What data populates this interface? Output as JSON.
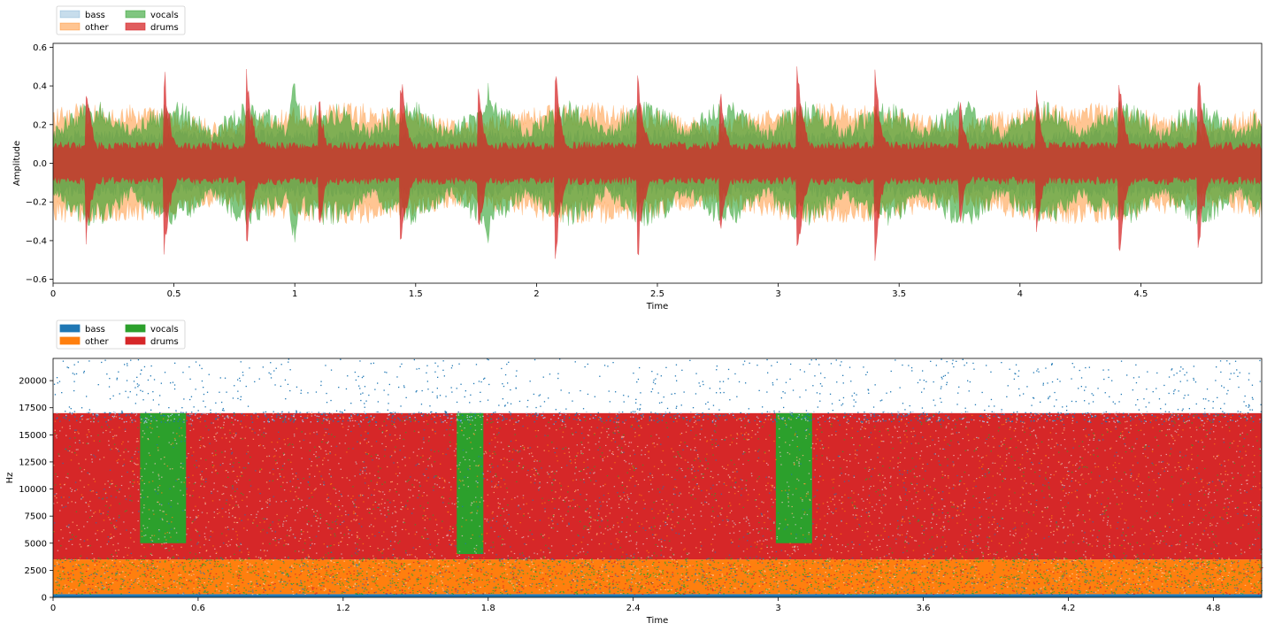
{
  "chart_data": [
    {
      "type": "area",
      "xlabel": "Time",
      "ylabel": "Amplitude",
      "xlim": [
        0,
        5.0
      ],
      "ylim": [
        -0.62,
        0.62
      ],
      "xticks": [
        0,
        0.5,
        1,
        1.5,
        2,
        2.5,
        3,
        3.5,
        4,
        4.5
      ],
      "xtick_labels": [
        "0",
        "0.5",
        "1",
        "1.5",
        "2",
        "2.5",
        "3",
        "3.5",
        "4",
        "4.5"
      ],
      "yticks": [
        -0.6,
        -0.4,
        -0.2,
        0.0,
        0.2,
        0.4,
        0.6
      ],
      "ytick_labels": [
        "−0.6",
        "−0.4",
        "−0.2",
        "0.0",
        "0.2",
        "0.4",
        "0.6"
      ],
      "grid": false,
      "legend": {
        "placement": "top-left outside",
        "columns": 2,
        "entries": [
          {
            "label": "bass",
            "color": "#1f77b4",
            "alpha": 0.25
          },
          {
            "label": "other",
            "color": "#ff7f0e",
            "alpha": 0.45
          },
          {
            "label": "vocals",
            "color": "#2ca02c",
            "alpha": 0.6
          },
          {
            "label": "drums",
            "color": "#d62728",
            "alpha": 0.75
          }
        ]
      },
      "series": [
        {
          "name": "bass",
          "color": "#1f77b4",
          "typical_amplitude": 0.14
        },
        {
          "name": "other",
          "color": "#ff7f0e",
          "typical_amplitude": 0.22
        },
        {
          "name": "vocals",
          "color": "#2ca02c",
          "typical_amplitude": 0.26,
          "peaks": [
            {
              "t": 1.0,
              "a": 0.46
            },
            {
              "t": 1.8,
              "a": 0.42
            },
            {
              "t": 2.15,
              "a": 0.32
            }
          ]
        },
        {
          "name": "drums",
          "color": "#d62728",
          "typical_amplitude": 0.09,
          "peaks": [
            {
              "t": 0.14,
              "a": 0.43
            },
            {
              "t": 0.46,
              "a": 0.55
            },
            {
              "t": 0.8,
              "a": 0.55
            },
            {
              "t": 1.1,
              "a": 0.38
            },
            {
              "t": 1.44,
              "a": 0.52
            },
            {
              "t": 1.76,
              "a": 0.41
            },
            {
              "t": 2.08,
              "a": 0.52
            },
            {
              "t": 2.42,
              "a": 0.52
            },
            {
              "t": 2.76,
              "a": 0.43
            },
            {
              "t": 3.08,
              "a": 0.56
            },
            {
              "t": 3.4,
              "a": 0.52
            },
            {
              "t": 3.75,
              "a": 0.37
            },
            {
              "t": 4.07,
              "a": 0.39
            },
            {
              "t": 4.41,
              "a": 0.54
            },
            {
              "t": 4.74,
              "a": 0.51
            }
          ]
        }
      ]
    },
    {
      "type": "heatmap",
      "xlabel": "Time",
      "ylabel": "Hz",
      "xlim": [
        0,
        5.0
      ],
      "ylim": [
        0,
        22050
      ],
      "xticks": [
        0,
        0.6,
        1.2,
        1.8,
        2.4,
        3.0,
        3.6,
        4.2,
        4.8
      ],
      "xtick_labels": [
        "0",
        "0.6",
        "1.2",
        "1.8",
        "2.4",
        "3",
        "3.6",
        "4.2",
        "4.8"
      ],
      "yticks": [
        0,
        2500,
        5000,
        7500,
        10000,
        12500,
        15000,
        17500,
        20000
      ],
      "ytick_labels": [
        "0",
        "2500",
        "5000",
        "7500",
        "10000",
        "12500",
        "15000",
        "17500",
        "20000"
      ],
      "grid": false,
      "legend": {
        "placement": "top-left outside",
        "columns": 2,
        "entries": [
          {
            "label": "bass",
            "color": "#1f77b4"
          },
          {
            "label": "other",
            "color": "#ff7f0e"
          },
          {
            "label": "vocals",
            "color": "#2ca02c"
          },
          {
            "label": "drums",
            "color": "#d62728"
          }
        ]
      },
      "dominant_regions": [
        {
          "source": "bass",
          "freq_range": [
            0,
            300
          ],
          "time_range": [
            0,
            5.0
          ]
        },
        {
          "source": "other",
          "freq_range": [
            300,
            3500
          ],
          "time_range": [
            0,
            5.0
          ]
        },
        {
          "source": "drums",
          "freq_range": [
            3500,
            17000
          ],
          "time_range": [
            0,
            5.0
          ]
        },
        {
          "source": "vocals",
          "freq_range": [
            5000,
            17000
          ],
          "time_range": [
            0.36,
            0.55
          ]
        },
        {
          "source": "vocals",
          "freq_range": [
            4000,
            17000
          ],
          "time_range": [
            1.67,
            1.78
          ]
        },
        {
          "source": "vocals",
          "freq_range": [
            5000,
            17000
          ],
          "time_range": [
            2.99,
            3.14
          ]
        },
        {
          "source": "bass",
          "freq_range": [
            17000,
            22050
          ],
          "time_range": [
            0,
            5.0
          ],
          "sparse": true
        }
      ]
    }
  ]
}
